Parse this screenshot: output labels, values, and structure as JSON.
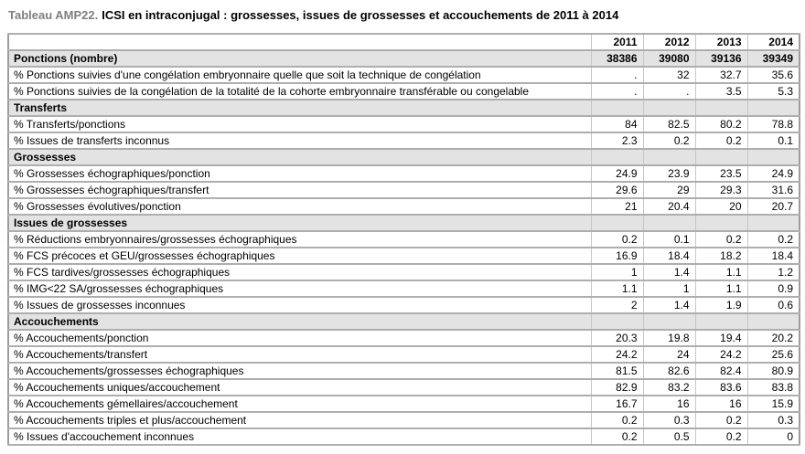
{
  "title": {
    "prefix": "Tableau AMP22.",
    "text": "ICSI en intraconjugal : grossesses, issues de grossesses et accouchements de 2011 à 2014"
  },
  "colors": {
    "title_prefix_gray": "#7f7f7f",
    "section_row_background": "#e3e3e3",
    "border_gray": "#aeaeae"
  },
  "table": {
    "columns": [
      "2011",
      "2012",
      "2013",
      "2014"
    ],
    "rows": [
      {
        "type": "group",
        "label": "Ponctions (nombre)",
        "values": [
          "38386",
          "39080",
          "39136",
          "39349"
        ]
      },
      {
        "type": "data",
        "label": "% Ponctions suivies d'une congélation embryonnaire quelle que soit la technique de congélation",
        "values": [
          ".",
          "32",
          "32.7",
          "35.6"
        ]
      },
      {
        "type": "data",
        "label": "% Ponctions suivies de la congélation de la totalité de la cohorte embryonnaire transférable ou congelable",
        "values": [
          ".",
          ".",
          "3.5",
          "5.3"
        ]
      },
      {
        "type": "section",
        "label": "Transferts",
        "values": [
          "",
          "",
          "",
          ""
        ]
      },
      {
        "type": "data",
        "label": "% Transferts/ponctions",
        "values": [
          "84",
          "82.5",
          "80.2",
          "78.8"
        ]
      },
      {
        "type": "data",
        "label": "% Issues de transferts inconnus",
        "values": [
          "2.3",
          "0.2",
          "0.2",
          "0.1"
        ]
      },
      {
        "type": "section",
        "label": "Grossesses",
        "values": [
          "",
          "",
          "",
          ""
        ]
      },
      {
        "type": "data",
        "label": "% Grossesses échographiques/ponction",
        "values": [
          "24.9",
          "23.9",
          "23.5",
          "24.9"
        ]
      },
      {
        "type": "data",
        "label": "% Grossesses échographiques/transfert",
        "values": [
          "29.6",
          "29",
          "29.3",
          "31.6"
        ]
      },
      {
        "type": "data",
        "label": "% Grossesses évolutives/ponction",
        "values": [
          "21",
          "20.4",
          "20",
          "20.7"
        ]
      },
      {
        "type": "section",
        "label": "Issues de grossesses",
        "values": [
          "",
          "",
          "",
          ""
        ]
      },
      {
        "type": "data",
        "label": "% Réductions embryonnaires/grossesses échographiques",
        "values": [
          "0.2",
          "0.1",
          "0.2",
          "0.2"
        ]
      },
      {
        "type": "data",
        "label": "% FCS précoces et GEU/grossesses échographiques",
        "values": [
          "16.9",
          "18.4",
          "18.2",
          "18.4"
        ]
      },
      {
        "type": "data",
        "label": "% FCS tardives/grossesses échographiques",
        "values": [
          "1",
          "1.4",
          "1.1",
          "1.2"
        ]
      },
      {
        "type": "data",
        "label": "% IMG<22 SA/grossesses échographiques",
        "values": [
          "1.1",
          "1",
          "1.1",
          "0.9"
        ]
      },
      {
        "type": "data",
        "label": "% Issues de grossesses inconnues",
        "values": [
          "2",
          "1.4",
          "1.9",
          "0.6"
        ]
      },
      {
        "type": "section",
        "label": "Accouchements",
        "values": [
          "",
          "",
          "",
          ""
        ]
      },
      {
        "type": "data",
        "label": "% Accouchements/ponction",
        "values": [
          "20.3",
          "19.8",
          "19.4",
          "20.2"
        ]
      },
      {
        "type": "data",
        "label": "% Accouchements/transfert",
        "values": [
          "24.2",
          "24",
          "24.2",
          "25.6"
        ]
      },
      {
        "type": "data",
        "label": "% Accouchements/grossesses échographiques",
        "values": [
          "81.5",
          "82.6",
          "82.4",
          "80.9"
        ]
      },
      {
        "type": "data",
        "label": "% Accouchements uniques/accouchement",
        "values": [
          "82.9",
          "83.2",
          "83.6",
          "83.8"
        ]
      },
      {
        "type": "data",
        "label": "% Accouchements gémellaires/accouchement",
        "values": [
          "16.7",
          "16",
          "16",
          "15.9"
        ]
      },
      {
        "type": "data",
        "label": "% Accouchements triples et plus/accouchement",
        "values": [
          "0.2",
          "0.3",
          "0.2",
          "0.3"
        ]
      },
      {
        "type": "data",
        "label": "% Issues d'accouchement inconnues",
        "values": [
          "0.2",
          "0.5",
          "0.2",
          "0"
        ]
      }
    ]
  }
}
